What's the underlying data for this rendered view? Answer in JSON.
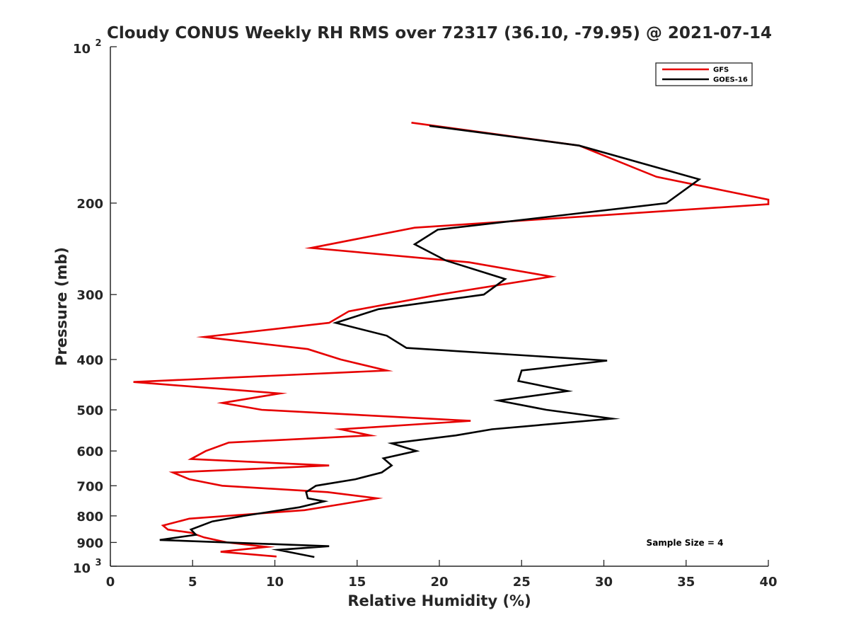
{
  "chart_data": {
    "type": "line",
    "title": "Cloudy CONUS Weekly RH RMS over 72317 (36.10, -79.95) @ 2021-07-14",
    "xlabel": "Relative Humidity (%)",
    "ylabel": "Pressure (mb)",
    "xlim": [
      0,
      40
    ],
    "ylim": [
      100,
      1000
    ],
    "y_scale": "log",
    "y_reversed": true,
    "x_ticks": [
      "0",
      "5",
      "10",
      "15",
      "20",
      "25",
      "30",
      "35",
      "40"
    ],
    "y_ticks": [
      {
        "value": 100,
        "base": "10",
        "exp": "2"
      },
      {
        "value": 200,
        "label": "200"
      },
      {
        "value": 300,
        "label": "300"
      },
      {
        "value": 400,
        "label": "400"
      },
      {
        "value": 500,
        "label": "500"
      },
      {
        "value": 600,
        "label": "600"
      },
      {
        "value": 700,
        "label": "700"
      },
      {
        "value": 800,
        "label": "800"
      },
      {
        "value": 900,
        "label": "900"
      },
      {
        "value": 1000,
        "base": "10",
        "exp": "3"
      }
    ],
    "grid": false,
    "legend": "top-right",
    "annotation": "Sample Size = 4",
    "series": [
      {
        "name": "GFS",
        "color": "#e60000",
        "points": [
          [
            18.3,
            140
          ],
          [
            28.5,
            155
          ],
          [
            33.2,
            178
          ],
          [
            40.0,
            197
          ],
          [
            40.0,
            201
          ],
          [
            18.5,
            223
          ],
          [
            12.2,
            244
          ],
          [
            21.8,
            260
          ],
          [
            26.8,
            277
          ],
          [
            20.0,
            300
          ],
          [
            14.5,
            323
          ],
          [
            13.3,
            340
          ],
          [
            5.7,
            362
          ],
          [
            12.0,
            382
          ],
          [
            14.0,
            400
          ],
          [
            16.8,
            420
          ],
          [
            1.4,
            442
          ],
          [
            10.3,
            465
          ],
          [
            6.8,
            485
          ],
          [
            9.2,
            500
          ],
          [
            21.9,
            525
          ],
          [
            14.0,
            545
          ],
          [
            15.8,
            560
          ],
          [
            7.2,
            578
          ],
          [
            5.8,
            600
          ],
          [
            4.9,
            622
          ],
          [
            13.3,
            640
          ],
          [
            3.8,
            660
          ],
          [
            4.8,
            680
          ],
          [
            6.8,
            700
          ],
          [
            13.2,
            720
          ],
          [
            16.2,
            740
          ],
          [
            14.0,
            760
          ],
          [
            11.8,
            780
          ],
          [
            4.8,
            810
          ],
          [
            3.2,
            835
          ],
          [
            3.5,
            850
          ],
          [
            4.9,
            862
          ],
          [
            5.7,
            880
          ],
          [
            7.1,
            900
          ],
          [
            9.5,
            918
          ],
          [
            6.7,
            938
          ],
          [
            10.1,
            958
          ]
        ]
      },
      {
        "name": "GOES-16",
        "color": "#000000",
        "points": [
          [
            19.4,
            142
          ],
          [
            28.5,
            155
          ],
          [
            35.8,
            180
          ],
          [
            33.8,
            200
          ],
          [
            19.9,
            225
          ],
          [
            18.5,
            240
          ],
          [
            20.4,
            258
          ],
          [
            24.0,
            280
          ],
          [
            22.7,
            300
          ],
          [
            16.3,
            320
          ],
          [
            13.7,
            340
          ],
          [
            16.8,
            360
          ],
          [
            18.0,
            380
          ],
          [
            30.2,
            402
          ],
          [
            25.0,
            420
          ],
          [
            24.8,
            440
          ],
          [
            27.8,
            460
          ],
          [
            23.6,
            480
          ],
          [
            26.5,
            500
          ],
          [
            30.5,
            520
          ],
          [
            23.2,
            545
          ],
          [
            21.0,
            560
          ],
          [
            17.1,
            580
          ],
          [
            18.6,
            600
          ],
          [
            16.6,
            620
          ],
          [
            17.1,
            640
          ],
          [
            16.5,
            660
          ],
          [
            14.9,
            680
          ],
          [
            12.5,
            700
          ],
          [
            11.9,
            720
          ],
          [
            12.0,
            740
          ],
          [
            13.0,
            750
          ],
          [
            11.5,
            770
          ],
          [
            8.1,
            800
          ],
          [
            6.2,
            820
          ],
          [
            4.9,
            850
          ],
          [
            5.2,
            870
          ],
          [
            3.0,
            890
          ],
          [
            13.3,
            915
          ],
          [
            10.2,
            930
          ],
          [
            12.4,
            960
          ]
        ]
      }
    ]
  }
}
